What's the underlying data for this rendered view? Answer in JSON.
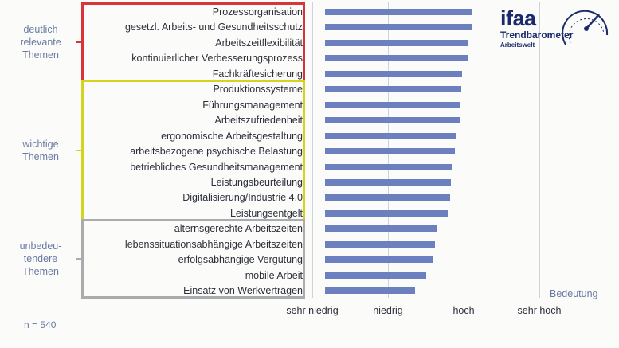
{
  "chart_data": {
    "type": "bar",
    "orientation": "horizontal",
    "xlabel": "Bedeutung",
    "x_ticks": [
      "sehr niedrig",
      "niedrig",
      "hoch",
      "sehr hoch"
    ],
    "xlim": [
      1,
      4
    ],
    "grid": true,
    "categories": [
      "Prozessorganisation",
      "gesetzl. Arbeits- und Gesundheitsschutz",
      "Arbeitszeitflexibilität",
      "kontinuierlicher Verbesserungsprozess",
      "Fachkräftesicherung",
      "Produktionssysteme",
      "Führungsmanagement",
      "Arbeitszufriedenheit",
      "ergonomische Arbeitsgestaltung",
      "arbeitsbezogene psychische Belastung",
      "betriebliches Gesundheitsmanagement",
      "Leistungsbeurteilung",
      "Digitalisierung/Industrie 4.0",
      "Leistungsentgelt",
      "alternsgerechte Arbeitszeiten",
      "lebenssituationsabhängige Arbeitszeiten",
      "erfolgsabhängige Vergütung",
      "mobile Arbeit",
      "Einsatz von Werkverträgen"
    ],
    "values": [
      3.12,
      3.11,
      3.06,
      3.05,
      2.98,
      2.97,
      2.96,
      2.95,
      2.91,
      2.88,
      2.85,
      2.83,
      2.82,
      2.79,
      2.64,
      2.62,
      2.6,
      2.5,
      2.36
    ],
    "groups": [
      {
        "label": "deutlich\nrelevante\nThemen",
        "color": "#d9343a",
        "from": 0,
        "to": 4
      },
      {
        "label": "wichtige\nThemen",
        "color": "#d4d31e",
        "from": 5,
        "to": 13
      },
      {
        "label": "unbedeu-\ntendere\nThemen",
        "color": "#a9abad",
        "from": 14,
        "to": 18
      }
    ],
    "bar_color": "#6c80c0"
  },
  "footnote": "n = 540",
  "logo": {
    "word": "ifaa",
    "line1": "Trendbarometer",
    "line2": "Arbeitswelt",
    "color": "#1b2a6b"
  }
}
